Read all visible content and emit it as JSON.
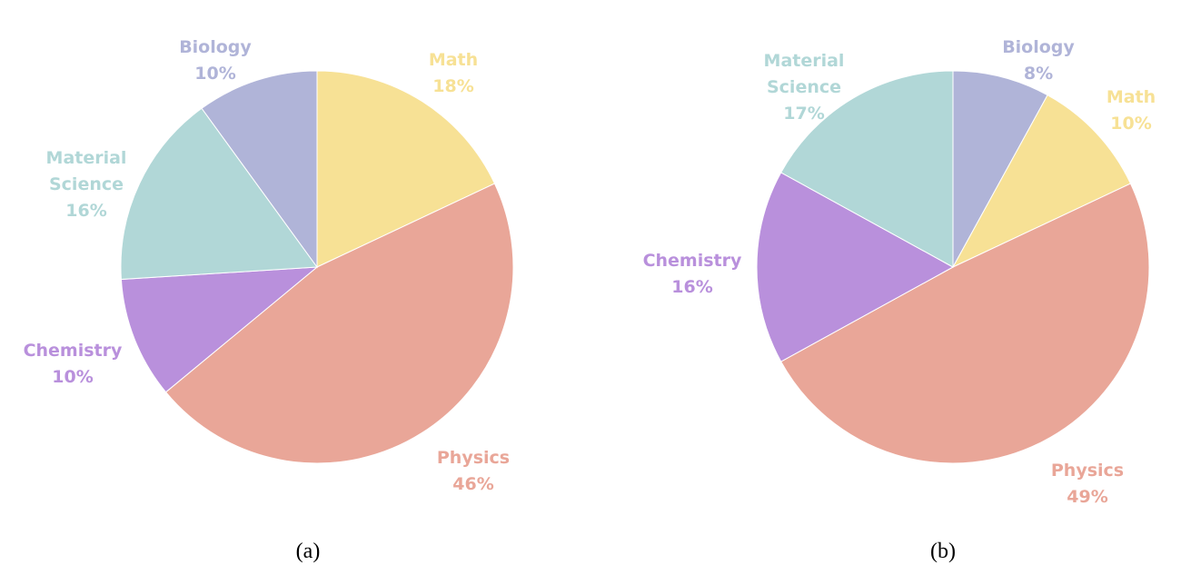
{
  "chart_data": [
    {
      "type": "pie",
      "caption": "(a)",
      "slices": [
        {
          "label": "Math",
          "value": 18,
          "value_text": "18%",
          "color": "#F7E195"
        },
        {
          "label": "Physics",
          "value": 46,
          "value_text": "46%",
          "color": "#E9A698"
        },
        {
          "label": "Chemistry",
          "value": 10,
          "value_text": "10%",
          "color": "#B990DC"
        },
        {
          "label": "Material Science",
          "value": 16,
          "value_text": "16%",
          "color": "#B1D7D7"
        },
        {
          "label": "Biology",
          "value": 10,
          "value_text": "10%",
          "color": "#B0B4D8"
        }
      ]
    },
    {
      "type": "pie",
      "caption": "(b)",
      "slices": [
        {
          "label": "Biology",
          "value": 8,
          "value_text": "8%",
          "color": "#B0B4D8"
        },
        {
          "label": "Math",
          "value": 10,
          "value_text": "10%",
          "color": "#F7E195"
        },
        {
          "label": "Physics",
          "value": 49,
          "value_text": "49%",
          "color": "#E9A698"
        },
        {
          "label": "Chemistry",
          "value": 16,
          "value_text": "16%",
          "color": "#B990DC"
        },
        {
          "label": "Material Science",
          "value": 17,
          "value_text": "17%",
          "color": "#B1D7D7"
        }
      ]
    }
  ]
}
